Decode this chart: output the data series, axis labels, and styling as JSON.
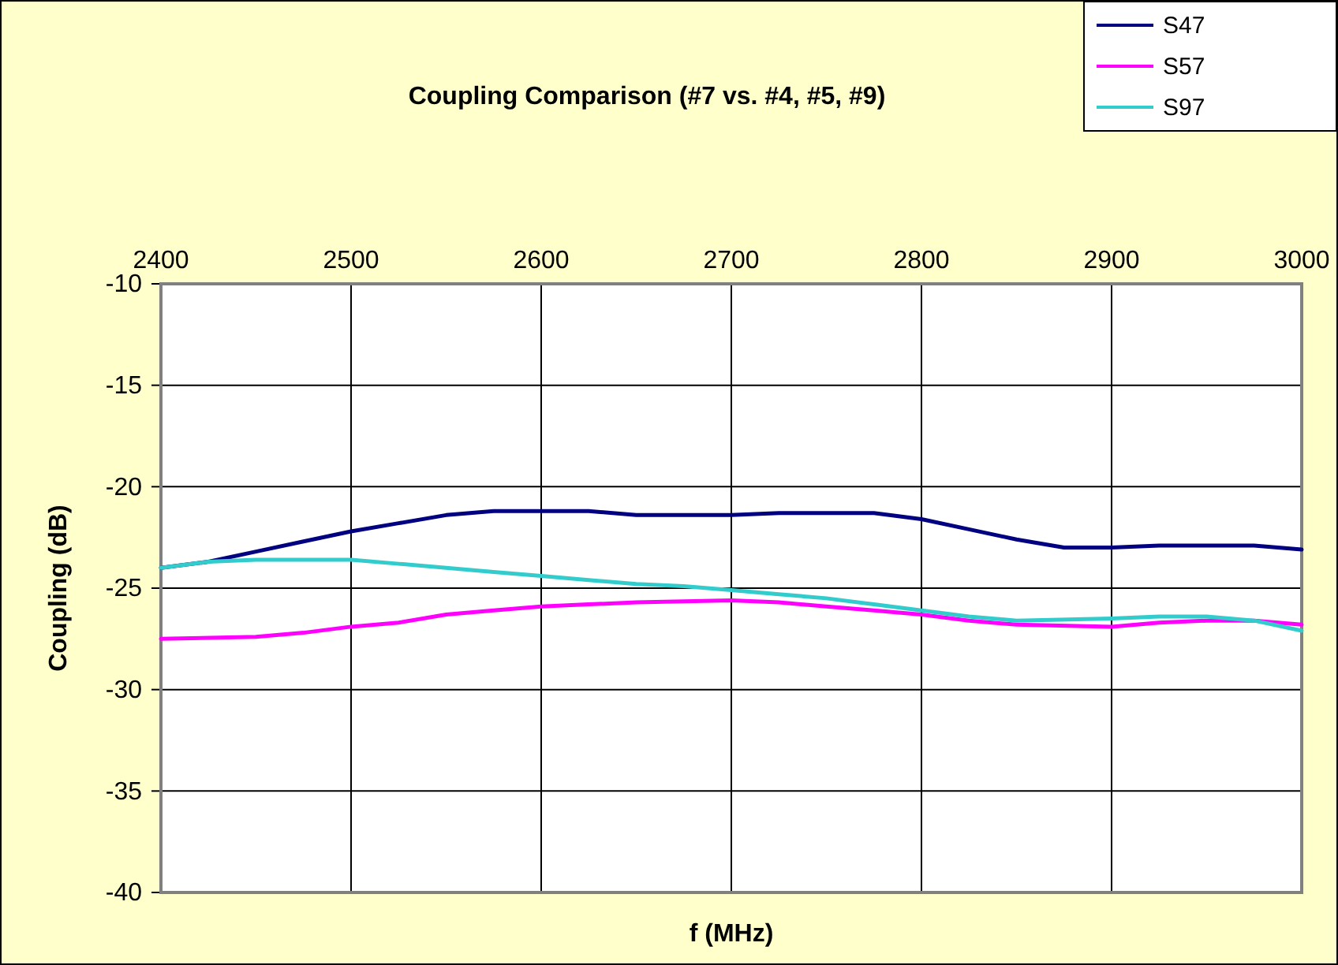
{
  "chart_data": {
    "type": "line",
    "title": "Coupling Comparison (#7 vs. #4, #5, #9)",
    "xlabel": "f (MHz)",
    "ylabel": "Coupling (dB)",
    "xlim": [
      2400,
      3000
    ],
    "xticks": [
      2400,
      2500,
      2600,
      2700,
      2800,
      2900,
      3000
    ],
    "ylim": [
      -40,
      -10
    ],
    "yticks": [
      -40,
      -35,
      -30,
      -25,
      -20,
      -15,
      -10
    ],
    "grid": true,
    "legend": "top right",
    "marker": "none",
    "line_style": "solid",
    "series": [
      {
        "name": "S47",
        "color": "#000080",
        "x": [
          2400,
          2425,
          2450,
          2475,
          2500,
          2525,
          2550,
          2575,
          2600,
          2625,
          2650,
          2675,
          2700,
          2725,
          2750,
          2775,
          2800,
          2825,
          2850,
          2875,
          2900,
          2925,
          2950,
          2975,
          3000
        ],
        "values": [
          -24.0,
          -23.7,
          -23.2,
          -22.7,
          -22.2,
          -21.8,
          -21.4,
          -21.2,
          -21.2,
          -21.2,
          -21.4,
          -21.4,
          -21.4,
          -21.3,
          -21.3,
          -21.3,
          -21.6,
          -22.1,
          -22.6,
          -23.0,
          -23.0,
          -22.9,
          -22.9,
          -22.9,
          -23.1
        ]
      },
      {
        "name": "S57",
        "color": "#ff00ff",
        "x": [
          2400,
          2450,
          2475,
          2500,
          2525,
          2550,
          2575,
          2600,
          2625,
          2650,
          2700,
          2725,
          2750,
          2775,
          2800,
          2825,
          2850,
          2900,
          2925,
          2950,
          2975,
          3000
        ],
        "values": [
          -27.5,
          -27.4,
          -27.2,
          -26.9,
          -26.7,
          -26.3,
          -26.1,
          -25.9,
          -25.8,
          -25.7,
          -25.6,
          -25.7,
          -25.9,
          -26.1,
          -26.3,
          -26.6,
          -26.8,
          -26.9,
          -26.7,
          -26.6,
          -26.6,
          -26.8
        ]
      },
      {
        "name": "S97",
        "color": "#33cccc",
        "x": [
          2400,
          2425,
          2450,
          2500,
          2525,
          2550,
          2575,
          2600,
          2625,
          2650,
          2675,
          2700,
          2725,
          2750,
          2775,
          2800,
          2825,
          2850,
          2900,
          2925,
          2950,
          2975,
          3000
        ],
        "values": [
          -24.0,
          -23.7,
          -23.6,
          -23.6,
          -23.8,
          -24.0,
          -24.2,
          -24.4,
          -24.6,
          -24.8,
          -24.9,
          -25.1,
          -25.3,
          -25.5,
          -25.8,
          -26.1,
          -26.4,
          -26.6,
          -26.5,
          -26.4,
          -26.4,
          -26.6,
          -27.1
        ]
      }
    ]
  }
}
